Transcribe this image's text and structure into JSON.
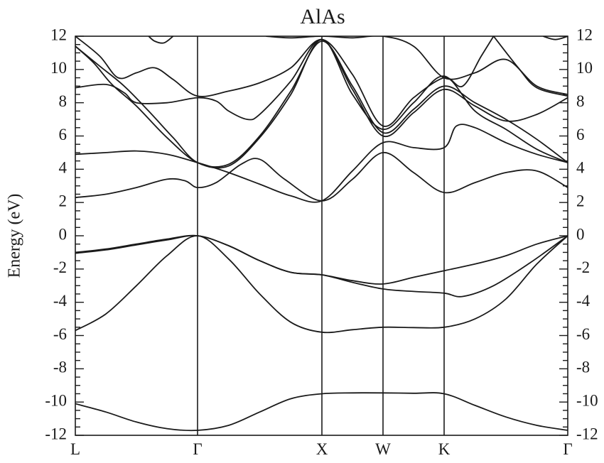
{
  "chart_data": {
    "type": "line",
    "title": "AlAs",
    "ylabel": "Energy (eV)",
    "xlabel": "",
    "ylim": [
      -12,
      12
    ],
    "yticks": [
      -12,
      -10,
      -8,
      -6,
      -4,
      -2,
      0,
      2,
      4,
      6,
      8,
      10,
      12
    ],
    "ytick_labels": [
      "-12",
      "-10",
      "-8",
      "-6",
      "-4",
      "-2",
      "0",
      "2",
      "4",
      "6",
      "8",
      "10",
      "12"
    ],
    "k_points": [
      {
        "label": "L",
        "k": 0
      },
      {
        "label": "Γ",
        "k": 2
      },
      {
        "label": "X",
        "k": 4
      },
      {
        "label": "W",
        "k": 5
      },
      {
        "label": "K",
        "k": 6
      },
      {
        "label": "Γ",
        "k": 8
      }
    ],
    "xlim": [
      0,
      8
    ],
    "grid": false,
    "series": [
      {
        "values": [
          [
            0,
            -10.1
          ],
          [
            0.5,
            -10.6
          ],
          [
            1,
            -11.2
          ],
          [
            1.5,
            -11.6
          ],
          [
            2,
            -11.7
          ],
          [
            2.5,
            -11.4
          ],
          [
            3,
            -10.6
          ],
          [
            3.5,
            -9.8
          ],
          [
            4,
            -9.5
          ],
          [
            4.5,
            -9.45
          ],
          [
            5,
            -9.45
          ],
          [
            5.5,
            -9.47
          ],
          [
            6,
            -9.5
          ],
          [
            6.5,
            -10.2
          ],
          [
            7,
            -10.9
          ],
          [
            7.5,
            -11.4
          ],
          [
            8,
            -11.7
          ]
        ]
      },
      {
        "values": [
          [
            0,
            -5.7
          ],
          [
            0.5,
            -4.7
          ],
          [
            1,
            -3.0
          ],
          [
            1.5,
            -1.2
          ],
          [
            2,
            0
          ],
          [
            2.5,
            -1.4
          ],
          [
            3,
            -3.5
          ],
          [
            3.5,
            -5.2
          ],
          [
            4,
            -5.8
          ],
          [
            4.5,
            -5.65
          ],
          [
            5,
            -5.5
          ],
          [
            5.5,
            -5.52
          ],
          [
            6,
            -5.5
          ],
          [
            6.5,
            -5.0
          ],
          [
            7,
            -3.8
          ],
          [
            7.5,
            -1.7
          ],
          [
            8,
            0
          ]
        ]
      },
      {
        "values": [
          [
            0,
            -1.0
          ],
          [
            0.5,
            -0.8
          ],
          [
            1,
            -0.5
          ],
          [
            1.5,
            -0.2
          ],
          [
            2,
            0
          ],
          [
            2.5,
            -0.6
          ],
          [
            3,
            -1.5
          ],
          [
            3.5,
            -2.2
          ],
          [
            4,
            -2.35
          ],
          [
            4.5,
            -2.8
          ],
          [
            5,
            -3.2
          ],
          [
            5.5,
            -3.35
          ],
          [
            6,
            -3.45
          ],
          [
            6.3,
            -3.65
          ],
          [
            6.8,
            -3.0
          ],
          [
            7.4,
            -1.6
          ],
          [
            8,
            0
          ]
        ]
      },
      {
        "values": [
          [
            0,
            -1.05
          ],
          [
            0.5,
            -0.85
          ],
          [
            1,
            -0.55
          ],
          [
            1.5,
            -0.25
          ],
          [
            2,
            0
          ],
          [
            2.5,
            -0.6
          ],
          [
            3,
            -1.5
          ],
          [
            3.5,
            -2.2
          ],
          [
            4,
            -2.35
          ],
          [
            4.5,
            -2.7
          ],
          [
            5,
            -2.9
          ],
          [
            5.5,
            -2.5
          ],
          [
            6,
            -2.1
          ],
          [
            6.5,
            -1.7
          ],
          [
            7,
            -1.2
          ],
          [
            7.5,
            -0.5
          ],
          [
            8,
            0
          ]
        ]
      },
      {
        "values": [
          [
            0,
            2.3
          ],
          [
            0.5,
            2.5
          ],
          [
            1,
            2.9
          ],
          [
            1.5,
            3.4
          ],
          [
            1.8,
            3.3
          ],
          [
            2,
            2.9
          ],
          [
            2.3,
            3.2
          ],
          [
            2.7,
            4.3
          ],
          [
            3,
            4.6
          ],
          [
            3.4,
            3.4
          ],
          [
            4,
            2.1
          ],
          [
            4.5,
            3.4
          ],
          [
            5,
            5.0
          ],
          [
            5.5,
            3.8
          ],
          [
            6,
            2.6
          ],
          [
            6.5,
            3.2
          ],
          [
            7,
            3.8
          ],
          [
            7.5,
            3.9
          ],
          [
            8,
            2.9
          ]
        ]
      },
      {
        "values": [
          [
            0,
            4.9
          ],
          [
            0.5,
            5.0
          ],
          [
            1,
            5.1
          ],
          [
            1.5,
            4.9
          ],
          [
            2,
            4.4
          ],
          [
            2.5,
            3.8
          ],
          [
            3,
            3.1
          ],
          [
            3.5,
            2.4
          ],
          [
            4,
            2.1
          ],
          [
            4.5,
            3.9
          ],
          [
            5,
            5.6
          ],
          [
            5.5,
            5.3
          ],
          [
            6,
            5.3
          ],
          [
            6.2,
            6.6
          ],
          [
            6.5,
            6.5
          ],
          [
            7,
            5.6
          ],
          [
            7.5,
            4.9
          ],
          [
            8,
            4.4
          ]
        ]
      },
      {
        "values": [
          [
            0,
            11.4
          ],
          [
            0.3,
            10.4
          ],
          [
            0.6,
            9.1
          ],
          [
            1,
            7.8
          ],
          [
            1.5,
            5.9
          ],
          [
            2,
            4.4
          ],
          [
            2.5,
            4.2
          ],
          [
            3,
            5.9
          ],
          [
            3.5,
            8.5
          ],
          [
            4,
            11.8
          ],
          [
            4.5,
            8.5
          ],
          [
            5,
            6.4
          ],
          [
            5.5,
            8.0
          ],
          [
            6,
            9.6
          ],
          [
            6.5,
            7.5
          ],
          [
            7,
            6.4
          ],
          [
            7.5,
            5.2
          ],
          [
            8,
            4.4
          ]
        ]
      },
      {
        "values": [
          [
            0,
            11.4
          ],
          [
            0.4,
            10.2
          ],
          [
            0.8,
            9.0
          ],
          [
            1.2,
            7.5
          ],
          [
            1.6,
            5.9
          ],
          [
            2,
            4.4
          ],
          [
            2.5,
            4.3
          ],
          [
            3,
            6.0
          ],
          [
            3.5,
            8.7
          ],
          [
            4,
            11.7
          ],
          [
            4.5,
            9.0
          ],
          [
            5,
            6.2
          ],
          [
            5.5,
            7.6
          ],
          [
            6,
            9.0
          ],
          [
            6.5,
            8.0
          ],
          [
            7,
            7.0
          ],
          [
            7.5,
            5.8
          ],
          [
            8,
            4.4
          ]
        ]
      },
      {
        "values": [
          [
            0,
            8.9
          ],
          [
            0.5,
            9.1
          ],
          [
            0.8,
            8.6
          ],
          [
            1,
            8.0
          ],
          [
            1.5,
            8.0
          ],
          [
            2,
            8.3
          ],
          [
            2.3,
            8.1
          ],
          [
            2.5,
            7.5
          ],
          [
            2.8,
            7.0
          ],
          [
            3,
            7.3
          ],
          [
            3.5,
            9.3
          ],
          [
            4,
            11.8
          ],
          [
            4.5,
            8.8
          ],
          [
            5,
            6.0
          ],
          [
            5.5,
            7.4
          ],
          [
            6,
            8.8
          ],
          [
            6.5,
            7.8
          ],
          [
            7,
            6.9
          ],
          [
            7.5,
            7.3
          ],
          [
            8,
            8.3
          ]
        ]
      },
      {
        "values": [
          [
            0,
            12
          ],
          [
            0.4,
            10.8
          ],
          [
            0.7,
            9.5
          ],
          [
            1,
            9.8
          ],
          [
            1.3,
            10.1
          ],
          [
            1.6,
            9.4
          ],
          [
            2,
            8.4
          ],
          [
            2.5,
            8.7
          ],
          [
            3,
            9.2
          ],
          [
            3.5,
            10.1
          ],
          [
            4,
            11.8
          ],
          [
            4.5,
            9.7
          ],
          [
            5,
            6.6
          ],
          [
            5.5,
            8.3
          ],
          [
            6,
            9.5
          ],
          [
            6.3,
            9.0
          ],
          [
            6.6,
            10.8
          ],
          [
            6.8,
            12
          ]
        ]
      },
      {
        "values": [
          [
            1.2,
            12
          ],
          [
            1.3,
            11.7
          ],
          [
            1.45,
            11.6
          ],
          [
            1.6,
            12
          ]
        ]
      },
      {
        "values": [
          [
            3.1,
            12
          ],
          [
            3.5,
            11.9
          ],
          [
            4,
            12
          ],
          [
            4.5,
            11.9
          ],
          [
            5,
            12
          ],
          [
            5.5,
            11.4
          ],
          [
            6,
            9.5
          ],
          [
            6.5,
            9.8
          ],
          [
            7,
            10.6
          ],
          [
            7.5,
            9.0
          ],
          [
            8,
            8.5
          ]
        ]
      },
      {
        "values": [
          [
            6.8,
            12
          ],
          [
            7.2,
            10.1
          ],
          [
            7.5,
            8.9
          ],
          [
            8,
            8.4
          ]
        ]
      },
      {
        "values": [
          [
            7.6,
            12
          ],
          [
            7.8,
            11.8
          ],
          [
            8,
            12
          ]
        ]
      }
    ]
  }
}
